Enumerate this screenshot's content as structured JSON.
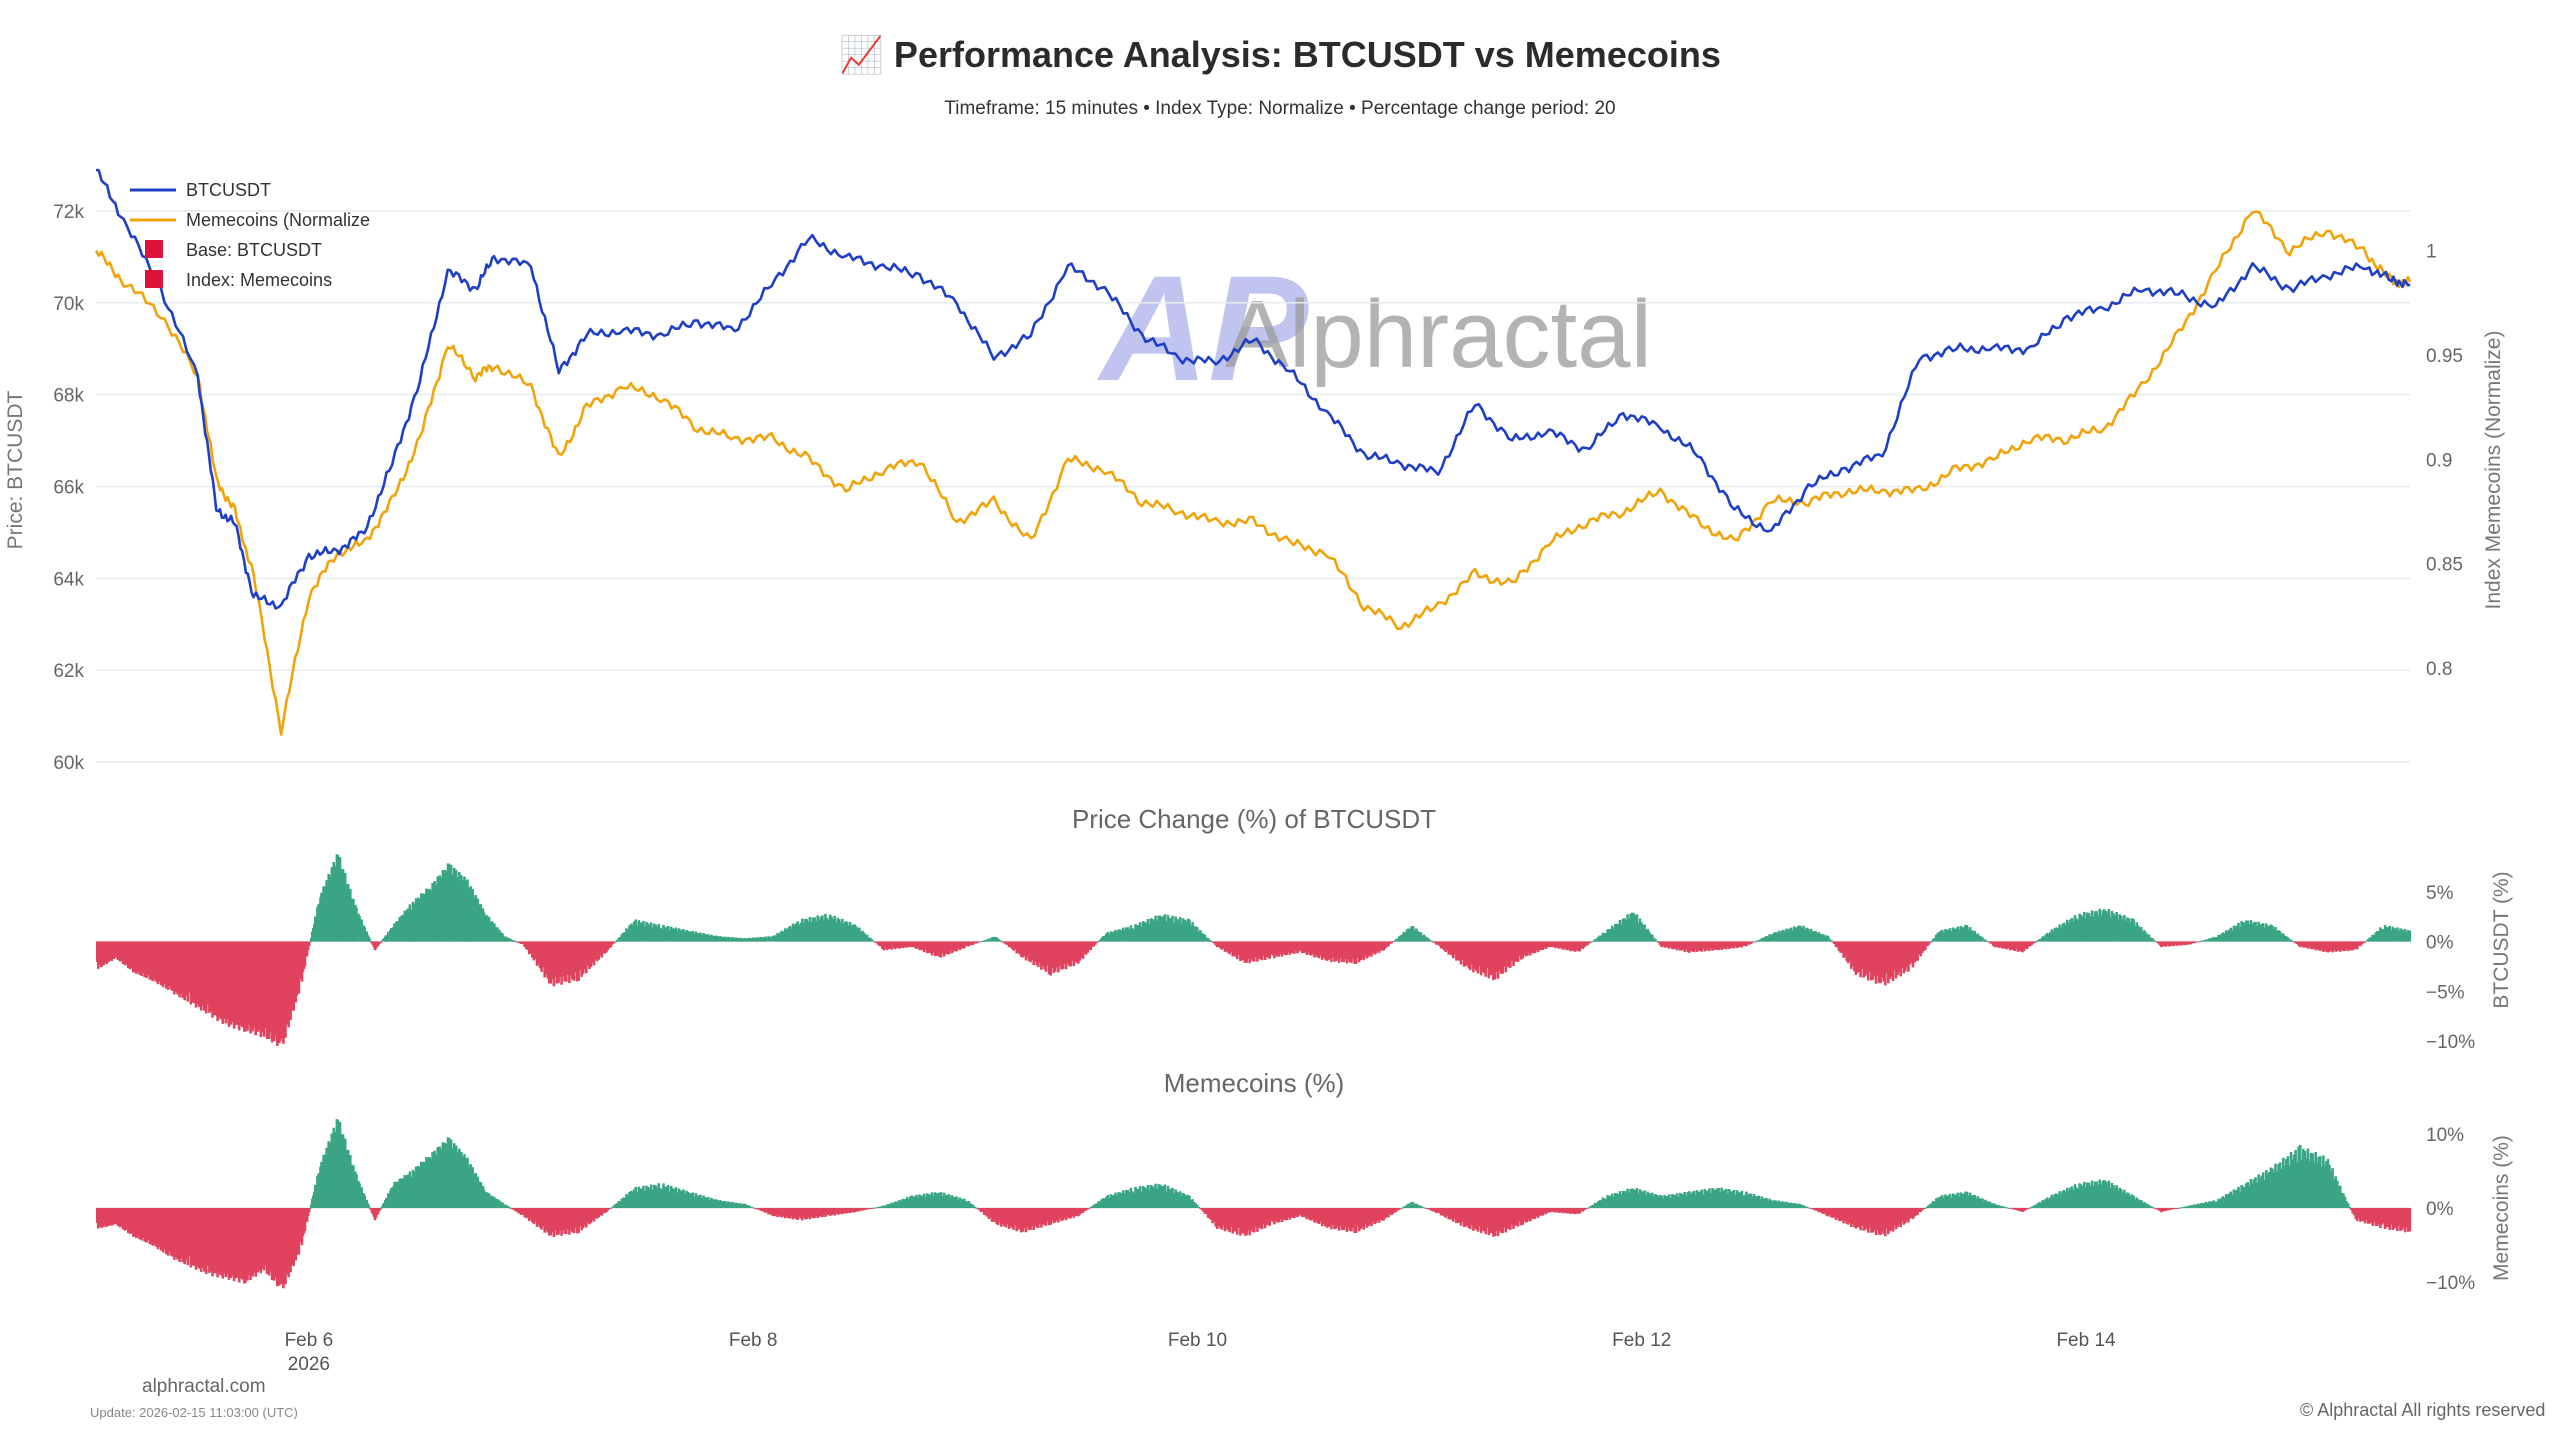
{
  "header": {
    "title": "📈 Performance Analysis: BTCUSDT vs Memecoins",
    "subtitle": "Timeframe: 15 minutes  •  Index Type: Normalize  •  Percentage change period: 20"
  },
  "watermark": {
    "text": "Alphractal",
    "logo_text": "AP"
  },
  "legend": [
    {
      "label": "BTCUSDT",
      "color": "#1f3fc4",
      "kind": "line"
    },
    {
      "label": "Memecoins (Normalize",
      "color": "#f0a30a",
      "kind": "line"
    },
    {
      "label": "Base: BTCUSDT",
      "color": "#dc143c",
      "kind": "square"
    },
    {
      "label": "Index: Memecoins",
      "color": "#dc143c",
      "kind": "square"
    }
  ],
  "footer": {
    "site": "alphractal.com",
    "update": "Update: 2026-02-15 11:03:00 (UTC)",
    "copyright": "© Alphractal All rights reserved"
  },
  "chart_data": [
    {
      "type": "line",
      "title": "",
      "xlabel": "",
      "ylabel": "Price: BTCUSDT",
      "ylabel_right": "Index Memecoins (Normalize)",
      "x_ticks": [
        "Feb 6",
        "Feb 8",
        "Feb 10",
        "Feb 12",
        "Feb 14"
      ],
      "x_tick_sublabel": "2026",
      "y_ticks": [
        "60k",
        "62k",
        "64k",
        "66k",
        "68k",
        "70k",
        "72k"
      ],
      "y_ticks_right": [
        "0.8",
        "0.85",
        "0.9",
        "0.95",
        "1"
      ],
      "ylim": [
        60000,
        72500
      ],
      "ylim_right": [
        0.755,
        1.03
      ],
      "xlim": [
        "2026-02-05 01:00",
        "2026-02-15 11:00"
      ],
      "grid": "horizontal",
      "legend_position": "top-left",
      "series": [
        {
          "name": "BTCUSDT",
          "axis": "left",
          "color": "#1f3fc4",
          "x": [
            "2026-02-05 01:00",
            "2026-02-05 04:00",
            "2026-02-05 08:00",
            "2026-02-05 12:00",
            "2026-02-05 14:00",
            "2026-02-05 16:00",
            "2026-02-05 18:00",
            "2026-02-05 21:00",
            "2026-02-06 00:00",
            "2026-02-06 03:00",
            "2026-02-06 06:00",
            "2026-02-06 09:00",
            "2026-02-06 12:00",
            "2026-02-06 15:00",
            "2026-02-06 18:00",
            "2026-02-06 20:00",
            "2026-02-07 00:00",
            "2026-02-07 03:00",
            "2026-02-07 06:00",
            "2026-02-07 10:00",
            "2026-02-07 14:00",
            "2026-02-07 18:00",
            "2026-02-07 22:00",
            "2026-02-08 02:00",
            "2026-02-08 06:00",
            "2026-02-08 10:00",
            "2026-02-08 14:00",
            "2026-02-08 18:00",
            "2026-02-08 22:00",
            "2026-02-09 02:00",
            "2026-02-09 06:00",
            "2026-02-09 10:00",
            "2026-02-09 14:00",
            "2026-02-09 18:00",
            "2026-02-09 22:00",
            "2026-02-10 02:00",
            "2026-02-10 06:00",
            "2026-02-10 10:00",
            "2026-02-10 14:00",
            "2026-02-10 18:00",
            "2026-02-10 22:00",
            "2026-02-11 02:00",
            "2026-02-11 06:00",
            "2026-02-11 10:00",
            "2026-02-11 14:00",
            "2026-02-11 18:00",
            "2026-02-11 22:00",
            "2026-02-12 02:00",
            "2026-02-12 06:00",
            "2026-02-12 10:00",
            "2026-02-12 14:00",
            "2026-02-12 18:00",
            "2026-02-12 22:00",
            "2026-02-13 02:00",
            "2026-02-13 06:00",
            "2026-02-13 10:00",
            "2026-02-13 14:00",
            "2026-02-13 18:00",
            "2026-02-13 22:00",
            "2026-02-14 02:00",
            "2026-02-14 06:00",
            "2026-02-14 10:00",
            "2026-02-14 14:00",
            "2026-02-14 18:00",
            "2026-02-14 22:00",
            "2026-02-15 02:00",
            "2026-02-15 06:00",
            "2026-02-15 09:00",
            "2026-02-15 11:00"
          ],
          "values": [
            72900,
            71800,
            70300,
            68400,
            65500,
            65200,
            63600,
            63400,
            64500,
            64600,
            65000,
            66500,
            68300,
            70700,
            70300,
            71000,
            70800,
            68500,
            69300,
            69400,
            69300,
            69600,
            69400,
            70400,
            71400,
            71000,
            70800,
            70600,
            70000,
            68800,
            69300,
            70800,
            70300,
            69300,
            68800,
            68700,
            69200,
            68500,
            67600,
            66700,
            66500,
            66300,
            67800,
            67000,
            67200,
            66800,
            67600,
            67300,
            66700,
            65500,
            65000,
            66000,
            66400,
            66700,
            68800,
            69000,
            69000,
            69000,
            69700,
            69900,
            70300,
            70200,
            69900,
            70800,
            70300,
            70600,
            70800,
            70500,
            70400
          ]
        },
        {
          "name": "Memecoins (Normalize",
          "axis": "right",
          "color": "#f0a30a",
          "x": [
            "2026-02-05 01:00",
            "2026-02-05 04:00",
            "2026-02-05 08:00",
            "2026-02-05 12:00",
            "2026-02-05 14:00",
            "2026-02-05 16:00",
            "2026-02-05 18:00",
            "2026-02-05 21:00",
            "2026-02-06 00:00",
            "2026-02-06 03:00",
            "2026-02-06 06:00",
            "2026-02-06 09:00",
            "2026-02-06 12:00",
            "2026-02-06 15:00",
            "2026-02-06 18:00",
            "2026-02-06 20:00",
            "2026-02-07 00:00",
            "2026-02-07 03:00",
            "2026-02-07 06:00",
            "2026-02-07 10:00",
            "2026-02-07 14:00",
            "2026-02-07 18:00",
            "2026-02-07 22:00",
            "2026-02-08 02:00",
            "2026-02-08 06:00",
            "2026-02-08 10:00",
            "2026-02-08 14:00",
            "2026-02-08 18:00",
            "2026-02-08 22:00",
            "2026-02-09 02:00",
            "2026-02-09 06:00",
            "2026-02-09 10:00",
            "2026-02-09 14:00",
            "2026-02-09 18:00",
            "2026-02-09 22:00",
            "2026-02-10 02:00",
            "2026-02-10 06:00",
            "2026-02-10 10:00",
            "2026-02-10 14:00",
            "2026-02-10 18:00",
            "2026-02-10 22:00",
            "2026-02-11 02:00",
            "2026-02-11 06:00",
            "2026-02-11 10:00",
            "2026-02-11 14:00",
            "2026-02-11 18:00",
            "2026-02-11 22:00",
            "2026-02-12 02:00",
            "2026-02-12 06:00",
            "2026-02-12 10:00",
            "2026-02-12 14:00",
            "2026-02-12 18:00",
            "2026-02-12 22:00",
            "2026-02-13 02:00",
            "2026-02-13 06:00",
            "2026-02-13 10:00",
            "2026-02-13 14:00",
            "2026-02-13 18:00",
            "2026-02-13 22:00",
            "2026-02-14 02:00",
            "2026-02-14 06:00",
            "2026-02-14 10:00",
            "2026-02-14 14:00",
            "2026-02-14 18:00",
            "2026-02-14 22:00",
            "2026-02-15 02:00",
            "2026-02-15 06:00",
            "2026-02-15 09:00",
            "2026-02-15 11:00"
          ],
          "values": [
            1.0,
            0.985,
            0.97,
            0.94,
            0.89,
            0.875,
            0.845,
            0.77,
            0.835,
            0.855,
            0.86,
            0.88,
            0.91,
            0.955,
            0.94,
            0.945,
            0.935,
            0.9,
            0.925,
            0.935,
            0.93,
            0.915,
            0.91,
            0.91,
            0.9,
            0.885,
            0.895,
            0.9,
            0.87,
            0.88,
            0.86,
            0.9,
            0.895,
            0.88,
            0.875,
            0.87,
            0.87,
            0.86,
            0.855,
            0.83,
            0.82,
            0.83,
            0.845,
            0.84,
            0.86,
            0.87,
            0.875,
            0.885,
            0.87,
            0.86,
            0.88,
            0.88,
            0.885,
            0.885,
            0.885,
            0.895,
            0.9,
            0.91,
            0.91,
            0.915,
            0.935,
            0.96,
            0.99,
            1.02,
            1.0,
            1.01,
            1.0,
            0.985,
            0.985
          ]
        }
      ]
    },
    {
      "type": "bar",
      "title": "Price Change (%) of BTCUSDT",
      "ylabel": "BTCUSDT (%)",
      "y_ticks": [
        "5%",
        "0%",
        "−5%",
        "−10%"
      ],
      "ylim": [
        -10.5,
        9
      ],
      "positive_color": "#3aa585",
      "negative_color": "#e0435e",
      "x_tick_labels": [
        "Feb 6",
        "Feb 8",
        "Feb 10",
        "Feb 12",
        "Feb 14"
      ],
      "x": [
        "2026-02-05 01:00",
        "2026-02-05 03:00",
        "2026-02-05 05:00",
        "2026-02-05 07:00",
        "2026-02-05 09:00",
        "2026-02-05 11:00",
        "2026-02-05 13:00",
        "2026-02-05 15:00",
        "2026-02-05 17:00",
        "2026-02-05 19:00",
        "2026-02-05 21:00",
        "2026-02-05 23:00",
        "2026-02-06 01:00",
        "2026-02-06 03:00",
        "2026-02-06 05:00",
        "2026-02-06 07:00",
        "2026-02-06 09:00",
        "2026-02-06 11:00",
        "2026-02-06 13:00",
        "2026-02-06 15:00",
        "2026-02-06 17:00",
        "2026-02-06 19:00",
        "2026-02-06 21:00",
        "2026-02-06 23:00",
        "2026-02-07 02:00",
        "2026-02-07 05:00",
        "2026-02-07 08:00",
        "2026-02-07 11:00",
        "2026-02-07 14:00",
        "2026-02-07 17:00",
        "2026-02-07 20:00",
        "2026-02-07 23:00",
        "2026-02-08 02:00",
        "2026-02-08 05:00",
        "2026-02-08 08:00",
        "2026-02-08 11:00",
        "2026-02-08 14:00",
        "2026-02-08 17:00",
        "2026-02-08 20:00",
        "2026-02-08 23:00",
        "2026-02-09 02:00",
        "2026-02-09 05:00",
        "2026-02-09 08:00",
        "2026-02-09 11:00",
        "2026-02-09 14:00",
        "2026-02-09 17:00",
        "2026-02-09 20:00",
        "2026-02-09 23:00",
        "2026-02-10 02:00",
        "2026-02-10 05:00",
        "2026-02-10 08:00",
        "2026-02-10 11:00",
        "2026-02-10 14:00",
        "2026-02-10 17:00",
        "2026-02-10 20:00",
        "2026-02-10 23:00",
        "2026-02-11 02:00",
        "2026-02-11 05:00",
        "2026-02-11 08:00",
        "2026-02-11 11:00",
        "2026-02-11 14:00",
        "2026-02-11 17:00",
        "2026-02-11 20:00",
        "2026-02-11 23:00",
        "2026-02-12 02:00",
        "2026-02-12 05:00",
        "2026-02-12 08:00",
        "2026-02-12 11:00",
        "2026-02-12 14:00",
        "2026-02-12 17:00",
        "2026-02-12 20:00",
        "2026-02-12 23:00",
        "2026-02-13 02:00",
        "2026-02-13 05:00",
        "2026-02-13 08:00",
        "2026-02-13 11:00",
        "2026-02-13 14:00",
        "2026-02-13 17:00",
        "2026-02-13 20:00",
        "2026-02-13 23:00",
        "2026-02-14 02:00",
        "2026-02-14 05:00",
        "2026-02-14 08:00",
        "2026-02-14 11:00",
        "2026-02-14 14:00",
        "2026-02-14 17:00",
        "2026-02-14 20:00",
        "2026-02-14 23:00",
        "2026-02-15 02:00",
        "2026-02-15 05:00",
        "2026-02-15 08:00",
        "2026-02-15 11:00"
      ],
      "values": [
        -2.5,
        -1.5,
        -2.8,
        -3.5,
        -4.5,
        -5.5,
        -6.5,
        -7.5,
        -8.0,
        -8.5,
        -9.5,
        -4.0,
        4.0,
        8.0,
        3.0,
        -0.8,
        1.5,
        3.5,
        5.0,
        7.0,
        5.5,
        2.5,
        0.5,
        -0.3,
        -4.0,
        -3.5,
        -1.0,
        2.0,
        1.5,
        1.0,
        0.5,
        0.3,
        0.5,
        2.0,
        2.5,
        1.5,
        -0.8,
        -0.5,
        -1.5,
        -0.5,
        0.5,
        -1.5,
        -3.0,
        -2.0,
        0.8,
        1.5,
        2.5,
        2.0,
        -0.5,
        -2.0,
        -1.5,
        -1.0,
        -1.8,
        -2.0,
        -0.8,
        1.5,
        -0.5,
        -2.5,
        -3.5,
        -1.5,
        -0.5,
        -1.0,
        1.0,
        2.8,
        -0.5,
        -1.0,
        -0.8,
        -0.5,
        0.8,
        1.5,
        0.5,
        -3.0,
        -4.0,
        -2.5,
        1.0,
        1.5,
        -0.5,
        -1.0,
        1.0,
        2.5,
        3.0,
        2.0,
        -0.5,
        -0.3,
        0.5,
        2.0,
        1.5,
        -0.5,
        -1.0,
        -0.8,
        1.5,
        1.0
      ]
    },
    {
      "type": "bar",
      "title": "Memecoins (%)",
      "ylabel": "Memecoins (%)",
      "y_ticks": [
        "10%",
        "0%",
        "−10%"
      ],
      "ylim": [
        -13,
        13
      ],
      "positive_color": "#3aa585",
      "negative_color": "#e0435e",
      "x_tick_labels": [
        "Feb 6",
        "Feb 8",
        "Feb 10",
        "Feb 12",
        "Feb 14"
      ],
      "x": [
        "2026-02-05 01:00",
        "2026-02-05 03:00",
        "2026-02-05 05:00",
        "2026-02-05 07:00",
        "2026-02-05 09:00",
        "2026-02-05 11:00",
        "2026-02-05 13:00",
        "2026-02-05 15:00",
        "2026-02-05 17:00",
        "2026-02-05 19:00",
        "2026-02-05 21:00",
        "2026-02-05 23:00",
        "2026-02-06 01:00",
        "2026-02-06 03:00",
        "2026-02-06 05:00",
        "2026-02-06 07:00",
        "2026-02-06 09:00",
        "2026-02-06 11:00",
        "2026-02-06 13:00",
        "2026-02-06 15:00",
        "2026-02-06 17:00",
        "2026-02-06 19:00",
        "2026-02-06 21:00",
        "2026-02-06 23:00",
        "2026-02-07 02:00",
        "2026-02-07 05:00",
        "2026-02-07 08:00",
        "2026-02-07 11:00",
        "2026-02-07 14:00",
        "2026-02-07 17:00",
        "2026-02-07 20:00",
        "2026-02-07 23:00",
        "2026-02-08 02:00",
        "2026-02-08 05:00",
        "2026-02-08 08:00",
        "2026-02-08 11:00",
        "2026-02-08 14:00",
        "2026-02-08 17:00",
        "2026-02-08 20:00",
        "2026-02-08 23:00",
        "2026-02-09 02:00",
        "2026-02-09 05:00",
        "2026-02-09 08:00",
        "2026-02-09 11:00",
        "2026-02-09 14:00",
        "2026-02-09 17:00",
        "2026-02-09 20:00",
        "2026-02-09 23:00",
        "2026-02-10 02:00",
        "2026-02-10 05:00",
        "2026-02-10 08:00",
        "2026-02-10 11:00",
        "2026-02-10 14:00",
        "2026-02-10 17:00",
        "2026-02-10 20:00",
        "2026-02-10 23:00",
        "2026-02-11 02:00",
        "2026-02-11 05:00",
        "2026-02-11 08:00",
        "2026-02-11 11:00",
        "2026-02-11 14:00",
        "2026-02-11 17:00",
        "2026-02-11 20:00",
        "2026-02-11 23:00",
        "2026-02-12 02:00",
        "2026-02-12 05:00",
        "2026-02-12 08:00",
        "2026-02-12 11:00",
        "2026-02-12 14:00",
        "2026-02-12 17:00",
        "2026-02-12 20:00",
        "2026-02-12 23:00",
        "2026-02-13 02:00",
        "2026-02-13 05:00",
        "2026-02-13 08:00",
        "2026-02-13 11:00",
        "2026-02-13 14:00",
        "2026-02-13 17:00",
        "2026-02-13 20:00",
        "2026-02-13 23:00",
        "2026-02-14 02:00",
        "2026-02-14 05:00",
        "2026-02-14 08:00",
        "2026-02-14 11:00",
        "2026-02-14 14:00",
        "2026-02-14 17:00",
        "2026-02-14 20:00",
        "2026-02-14 23:00",
        "2026-02-15 02:00",
        "2026-02-15 05:00",
        "2026-02-15 08:00",
        "2026-02-15 11:00"
      ],
      "values": [
        -2.5,
        -2.0,
        -3.5,
        -4.5,
        -6.0,
        -7.0,
        -8.0,
        -8.5,
        -9.0,
        -7.5,
        -10.0,
        -5.0,
        5.0,
        11.0,
        4.0,
        -1.5,
        3.0,
        4.5,
        6.5,
        8.5,
        6.0,
        2.0,
        0.5,
        -1.0,
        -3.5,
        -3.0,
        -0.5,
        2.5,
        3.0,
        2.0,
        1.0,
        0.5,
        -1.0,
        -1.5,
        -1.0,
        -0.5,
        0.3,
        1.5,
        2.0,
        1.0,
        -2.0,
        -3.0,
        -2.0,
        -1.0,
        1.5,
        2.5,
        3.0,
        1.5,
        -2.5,
        -3.5,
        -2.0,
        -1.0,
        -2.5,
        -3.0,
        -1.5,
        0.8,
        -0.8,
        -2.5,
        -3.5,
        -2.0,
        -0.5,
        -0.8,
        1.5,
        2.5,
        1.5,
        2.0,
        2.5,
        2.0,
        1.0,
        0.5,
        -1.0,
        -2.5,
        -3.5,
        -1.5,
        1.5,
        2.0,
        0.5,
        -0.5,
        1.5,
        3.0,
        3.5,
        1.5,
        -0.5,
        0.3,
        1.0,
        3.0,
        5.0,
        7.5,
        6.0,
        -1.5,
        -2.5,
        -3.0
      ]
    }
  ]
}
